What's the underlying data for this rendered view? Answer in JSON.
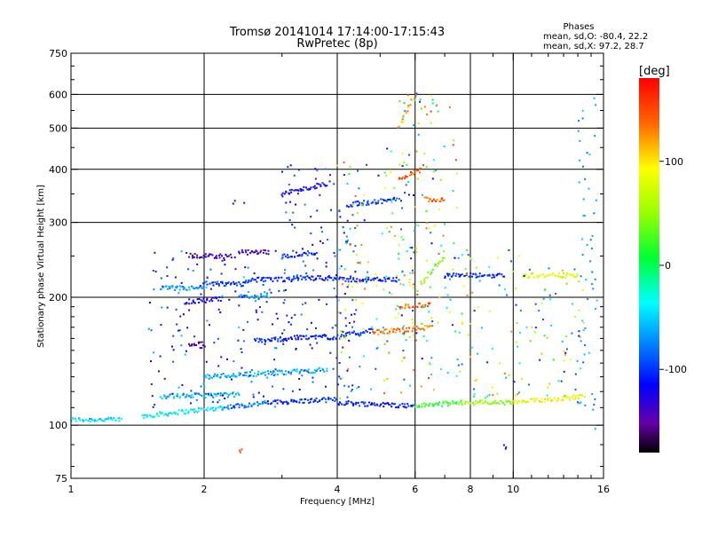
{
  "chart_data": {
    "type": "scatter",
    "title": "Tromsø 20141014 17:14:00-17:15:43",
    "subtitle": "RwPretec (8p)",
    "xlabel": "Frequency [MHz]",
    "ylabel": "Stationary phase Virtual Height [km]",
    "x_scale": "log",
    "y_scale": "log",
    "xlim": [
      1,
      16
    ],
    "ylim": [
      75,
      750
    ],
    "x_ticks": [
      1,
      2,
      4,
      6,
      8,
      10,
      16
    ],
    "x_tick_labels": [
      "1",
      "2",
      "4",
      "6",
      "8",
      "10",
      "16"
    ],
    "x_minor_ticks": [
      3,
      5,
      7,
      9,
      11,
      12,
      13,
      14,
      15
    ],
    "y_ticks": [
      75,
      100,
      200,
      300,
      400,
      500,
      600,
      750
    ],
    "y_tick_labels": [
      "75",
      "100",
      "200",
      "300",
      "400",
      "500",
      "600",
      "750"
    ],
    "grid": true,
    "colorbar": {
      "label": "[deg]",
      "range": [
        -180,
        180
      ],
      "ticks": [
        100,
        0,
        -100
      ],
      "tick_labels": [
        "100",
        "0",
        "-100"
      ]
    },
    "annotation": {
      "header": "Phases",
      "line1": "mean, sd,O: -80.4, 22.2",
      "line2": "mean, sd,X:  97.2, 28.7"
    },
    "traces": [
      {
        "x": [
          1.0,
          1.3
        ],
        "y": [
          103,
          103
        ],
        "phase": -40
      },
      {
        "x": [
          1.45,
          2.2
        ],
        "y": [
          105,
          110
        ],
        "phase": -35
      },
      {
        "x": [
          2.2,
          2.8
        ],
        "y": [
          110,
          113
        ],
        "phase": -70
      },
      {
        "x": [
          2.8,
          4.0
        ],
        "y": [
          113,
          115
        ],
        "phase": -95
      },
      {
        "x": [
          4.0,
          6.0
        ],
        "y": [
          113,
          111
        ],
        "phase": -100
      },
      {
        "x": [
          6.0,
          7.6
        ],
        "y": [
          111,
          113
        ],
        "phase": 20
      },
      {
        "x": [
          7.6,
          10.0
        ],
        "y": [
          113,
          113
        ],
        "phase": 50
      },
      {
        "x": [
          10.0,
          14.5
        ],
        "y": [
          113,
          117
        ],
        "phase": 90
      },
      {
        "x": [
          1.6,
          2.4
        ],
        "y": [
          117,
          118
        ],
        "phase": -55
      },
      {
        "x": [
          2.0,
          3.8
        ],
        "y": [
          130,
          135
        ],
        "phase": -55
      },
      {
        "x": [
          1.85,
          2.0
        ],
        "y": [
          155,
          155
        ],
        "phase": -145
      },
      {
        "x": [
          2.6,
          3.8
        ],
        "y": [
          158,
          162
        ],
        "phase": -100
      },
      {
        "x": [
          3.8,
          4.8
        ],
        "y": [
          160,
          167
        ],
        "phase": -95
      },
      {
        "x": [
          4.8,
          6.5
        ],
        "y": [
          165,
          170
        ],
        "phase": 130
      },
      {
        "x": [
          1.8,
          2.2
        ],
        "y": [
          195,
          198
        ],
        "phase": -120
      },
      {
        "x": [
          2.4,
          2.8
        ],
        "y": [
          200,
          202
        ],
        "phase": -60
      },
      {
        "x": [
          1.6,
          2.0
        ],
        "y": [
          210,
          210
        ],
        "phase": -55
      },
      {
        "x": [
          2.0,
          2.5
        ],
        "y": [
          215,
          215
        ],
        "phase": -95
      },
      {
        "x": [
          2.5,
          3.2
        ],
        "y": [
          220,
          220
        ],
        "phase": -95
      },
      {
        "x": [
          3.2,
          4.0
        ],
        "y": [
          222,
          222
        ],
        "phase": -95
      },
      {
        "x": [
          4.0,
          5.5
        ],
        "y": [
          220,
          220
        ],
        "phase": -100
      },
      {
        "x": [
          5.5,
          6.5
        ],
        "y": [
          190,
          192
        ],
        "phase": 140
      },
      {
        "x": [
          6.2,
          7.0
        ],
        "y": [
          215,
          250
        ],
        "phase": 40
      },
      {
        "x": [
          7.0,
          9.5
        ],
        "y": [
          225,
          225
        ],
        "phase": -100
      },
      {
        "x": [
          10.5,
          14.0
        ],
        "y": [
          225,
          225
        ],
        "phase": 80
      },
      {
        "x": [
          1.85,
          2.0
        ],
        "y": [
          250,
          250
        ],
        "phase": -150
      },
      {
        "x": [
          2.0,
          2.3
        ],
        "y": [
          250,
          250
        ],
        "phase": -140
      },
      {
        "x": [
          2.4,
          2.8
        ],
        "y": [
          255,
          255
        ],
        "phase": -135
      },
      {
        "x": [
          3.0,
          3.6
        ],
        "y": [
          250,
          255
        ],
        "phase": -100
      },
      {
        "x": [
          3.0,
          3.8
        ],
        "y": [
          350,
          370
        ],
        "phase": -110
      },
      {
        "x": [
          4.2,
          5.5
        ],
        "y": [
          330,
          340
        ],
        "phase": -90
      },
      {
        "x": [
          5.5,
          6.2
        ],
        "y": [
          380,
          400
        ],
        "phase": 150
      },
      {
        "x": [
          6.3,
          7.0
        ],
        "y": [
          340,
          340
        ],
        "phase": 140
      },
      {
        "x": [
          5.5,
          6.0
        ],
        "y": [
          500,
          600
        ],
        "phase": 120
      }
    ],
    "scatter_regions": [
      {
        "x": [
          1.5,
          3.0
        ],
        "y": [
          110,
          260
        ],
        "phase": [
          -150,
          -40
        ]
      },
      {
        "x": [
          3.0,
          4.5
        ],
        "y": [
          115,
          420
        ],
        "phase": [
          -150,
          -60
        ]
      },
      {
        "x": [
          4.0,
          6.0
        ],
        "y": [
          115,
          450
        ],
        "phase": [
          -120,
          150
        ]
      },
      {
        "x": [
          5.5,
          7.5
        ],
        "y": [
          120,
          620
        ],
        "phase": [
          -110,
          160
        ]
      },
      {
        "x": [
          7.5,
          10.5
        ],
        "y": [
          115,
          260
        ],
        "phase": [
          -100,
          140
        ]
      },
      {
        "x": [
          10.5,
          14.5
        ],
        "y": [
          112,
          240
        ],
        "phase": [
          -110,
          120
        ]
      },
      {
        "x": [
          2.3,
          2.5
        ],
        "y": [
          330,
          340
        ],
        "phase": [
          -130,
          -100
        ]
      },
      {
        "x": [
          2.4,
          2.5
        ],
        "y": [
          86,
          90
        ],
        "phase": [
          140,
          170
        ]
      },
      {
        "x": [
          9.5,
          9.7
        ],
        "y": [
          88,
          90
        ],
        "phase": [
          -100,
          -100
        ]
      },
      {
        "x": [
          14.0,
          15.5
        ],
        "y": [
          95,
          600
        ],
        "phase": [
          -80,
          -40
        ]
      }
    ]
  }
}
